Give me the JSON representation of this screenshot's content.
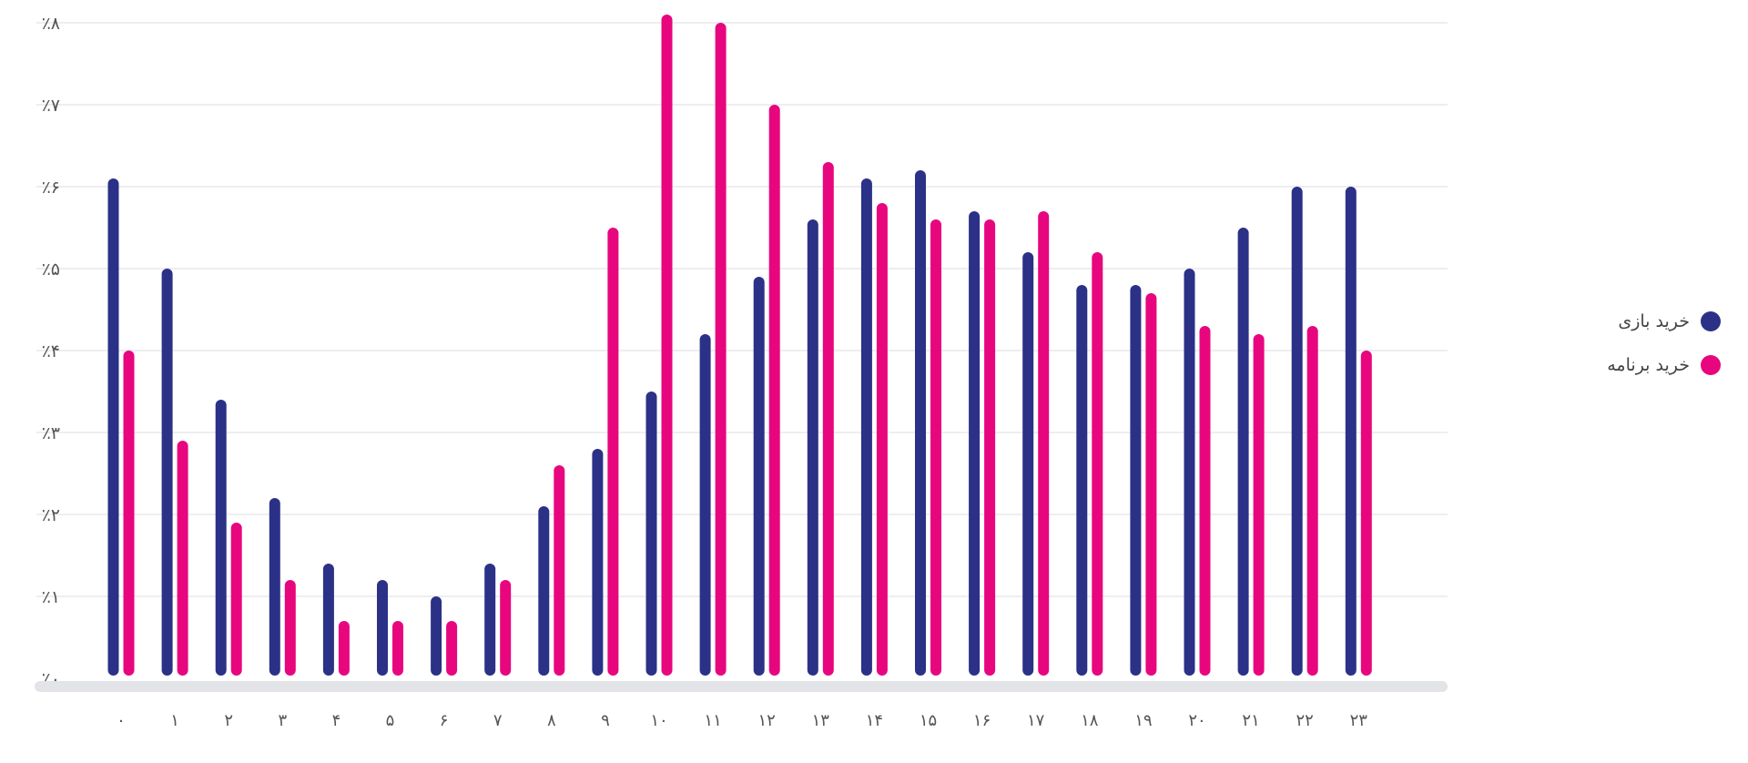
{
  "chart_data": {
    "type": "bar",
    "title": "",
    "xlabel": "",
    "ylabel": "",
    "ylim": [
      0,
      8
    ],
    "grid": true,
    "legend_position": "right",
    "categories": [
      "۰",
      "۱",
      "۲",
      "۳",
      "۴",
      "۵",
      "۶",
      "۷",
      "۸",
      "۹",
      "۱۰",
      "۱۱",
      "۱۲",
      "۱۳",
      "۱۴",
      "۱۵",
      "۱۶",
      "۱۷",
      "۱۸",
      "۱۹",
      "۲۰",
      "۲۱",
      "۲۲",
      "۲۳"
    ],
    "y_ticks": [
      "٪۰",
      "٪۱",
      "٪۲",
      "٪۳",
      "٪۴",
      "٪۵",
      "٪۶",
      "٪۷",
      "٪۸"
    ],
    "series": [
      {
        "name": "خرید بازی",
        "color": "#2b3187",
        "values": [
          6.1,
          5.0,
          3.4,
          2.2,
          1.4,
          1.2,
          1.0,
          1.4,
          2.1,
          2.8,
          3.5,
          4.2,
          4.9,
          5.6,
          6.1,
          6.2,
          5.7,
          5.2,
          4.8,
          4.8,
          5.0,
          5.5,
          6.0,
          6.0
        ]
      },
      {
        "name": "خرید برنامه",
        "color": "#e8067f",
        "values": [
          4.0,
          2.9,
          1.9,
          1.2,
          0.7,
          0.7,
          0.7,
          1.2,
          2.6,
          5.5,
          8.1,
          8.0,
          7.0,
          6.3,
          5.8,
          5.6,
          5.6,
          5.7,
          5.2,
          4.7,
          4.3,
          4.2,
          4.3,
          4.0
        ]
      }
    ]
  }
}
